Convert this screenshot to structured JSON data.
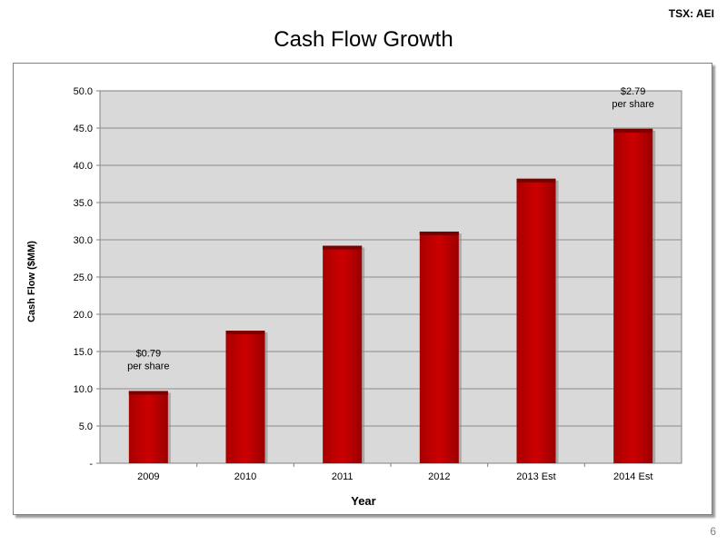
{
  "header": {
    "ticker": "TSX: AEI",
    "title": "Cash Flow Growth"
  },
  "footer": {
    "page_number": "6"
  },
  "chart_data": {
    "type": "bar",
    "title": "Cash Flow Growth",
    "xlabel": "Year",
    "ylabel": "Cash Flow ($MM)",
    "categories": [
      "2009",
      "2010",
      "2011",
      "2012",
      "2013 Est",
      "2014 Est"
    ],
    "values": [
      9.7,
      17.8,
      29.2,
      31.1,
      38.2,
      44.9
    ],
    "ylim": [
      0,
      50
    ],
    "yticks": [
      "-",
      "5.0",
      "10.0",
      "15.0",
      "20.0",
      "25.0",
      "30.0",
      "35.0",
      "40.0",
      "45.0",
      "50.0"
    ],
    "grid": true,
    "annotations": [
      {
        "category": "2009",
        "line1": "$0.79",
        "line2": "per share"
      },
      {
        "category": "2014 Est",
        "line1": "$2.79",
        "line2": "per share"
      }
    ],
    "colors": {
      "bar": "#c00000",
      "bar_dark": "#7a0000",
      "plot_background": "#d9d9d9",
      "gridline": "#8c8c8c"
    }
  }
}
